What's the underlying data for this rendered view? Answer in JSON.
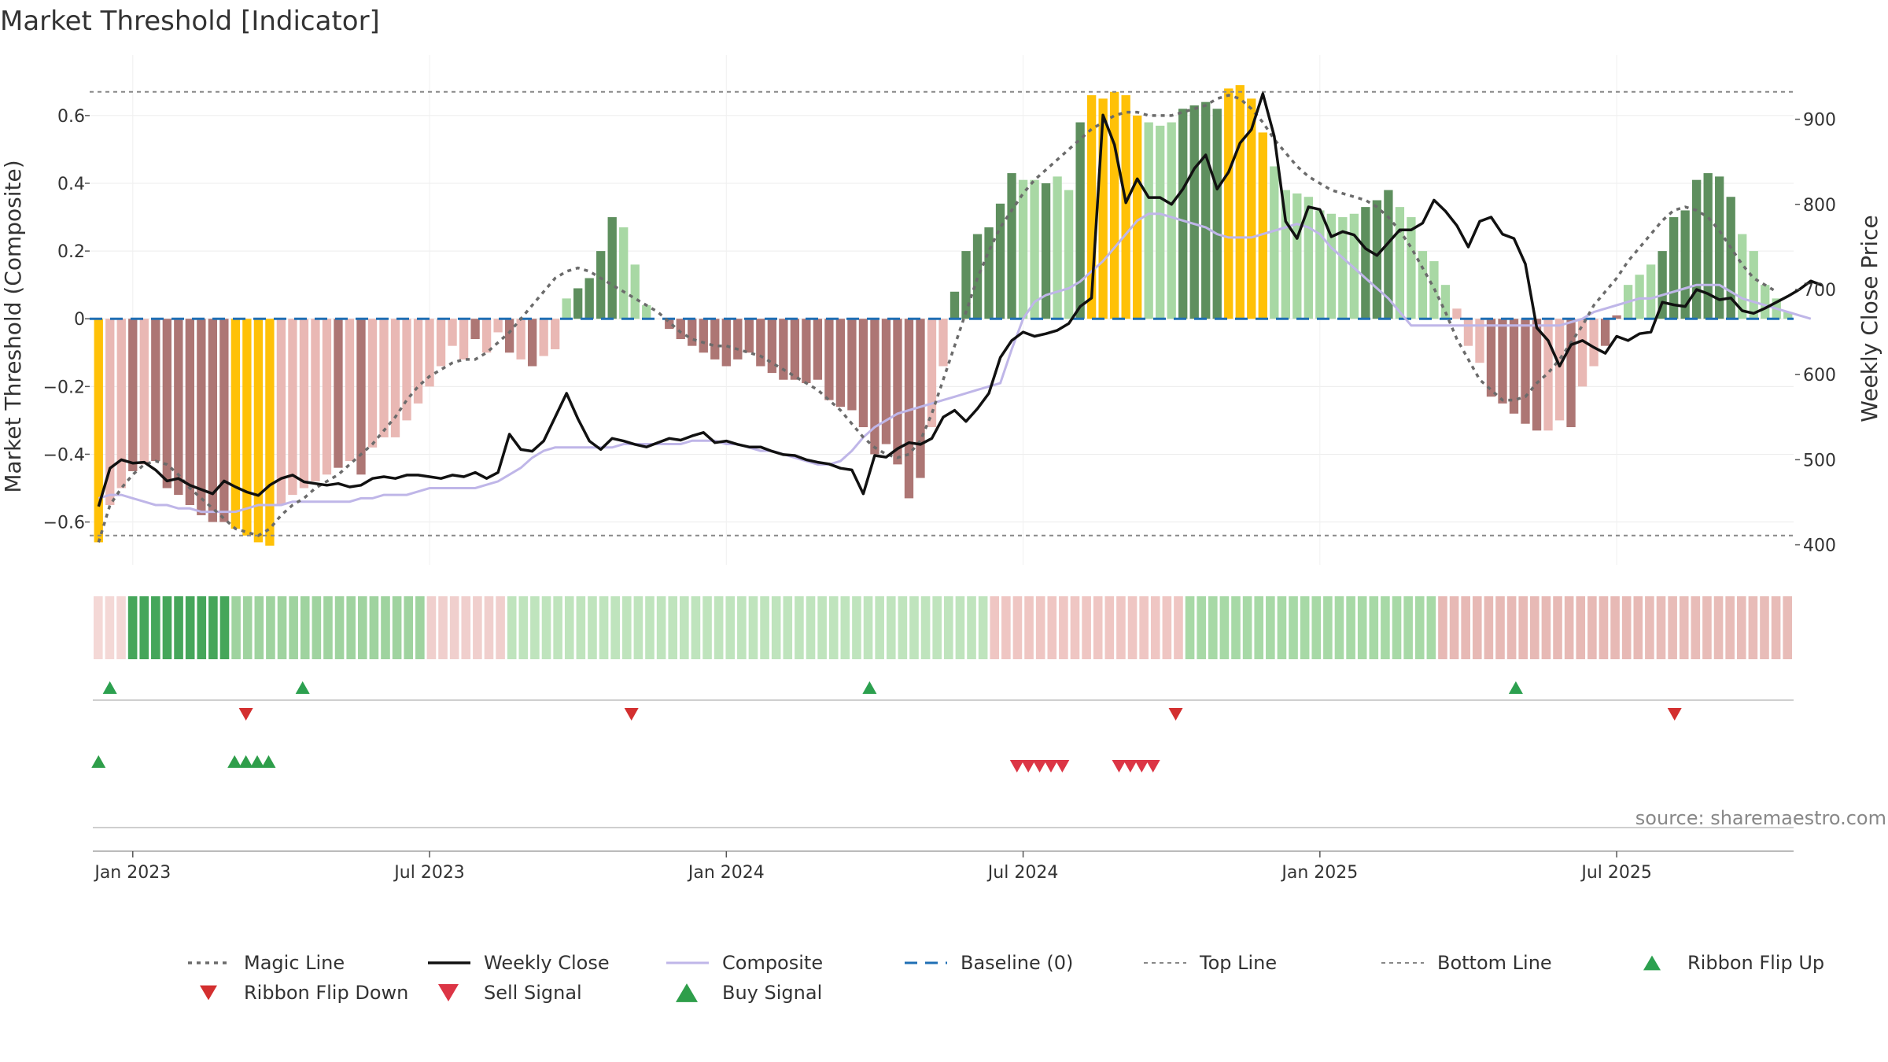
{
  "colors": {
    "gold": "#ffc107",
    "green_dark": "#5e8f5e",
    "green_light": "#a8d8a4",
    "red_dark": "#ad7674",
    "red_light": "#e9b8b4",
    "close": "#111111",
    "composite": "#bfb6e8",
    "magic": "#6b6b6b",
    "baseline": "#1f6fb4",
    "guide": "#888888",
    "flip_up": "#2ca04f",
    "flip_down": "#d32f2f",
    "sell": "#dc3545",
    "buy": "#2e9e4a"
  },
  "chart_data": {
    "type": "bar",
    "title": "Market Threshold [Indicator]",
    "ylabel": "Market Threshold (Composite)",
    "y2label": "Weekly Close Price",
    "ylim": [
      -0.68,
      0.76
    ],
    "y2lim": [
      395,
      968
    ],
    "yticks": [
      {
        "v": 0.6,
        "label": "0.6"
      },
      {
        "v": 0.4,
        "label": "0.4"
      },
      {
        "v": 0.2,
        "label": "0.2"
      },
      {
        "v": 0,
        "label": "0"
      },
      {
        "v": -0.2,
        "label": "−0.2"
      },
      {
        "v": -0.4,
        "label": "−0.4"
      },
      {
        "v": -0.6,
        "label": "−0.6"
      }
    ],
    "y2ticks": [
      {
        "v": 900,
        "label": "900"
      },
      {
        "v": 800,
        "label": "800"
      },
      {
        "v": 700,
        "label": "700"
      },
      {
        "v": 600,
        "label": "600"
      },
      {
        "v": 500,
        "label": "500"
      },
      {
        "v": 400,
        "label": "400"
      }
    ],
    "xticks": [
      {
        "week": 3,
        "label": "Jan 2023"
      },
      {
        "week": 29,
        "label": "Jul 2023"
      },
      {
        "week": 55,
        "label": "Jan 2024"
      },
      {
        "week": 81,
        "label": "Jul 2024"
      },
      {
        "week": 107,
        "label": "Jan 2025"
      },
      {
        "week": 133,
        "label": "Jul 2025"
      }
    ],
    "top_line": 0.67,
    "bottom_line": -0.64,
    "baseline": 0,
    "composite": [
      -0.66,
      -0.55,
      -0.5,
      -0.45,
      -0.43,
      -0.42,
      -0.5,
      -0.52,
      -0.55,
      -0.58,
      -0.6,
      -0.6,
      -0.62,
      -0.64,
      -0.66,
      -0.67,
      -0.55,
      -0.52,
      -0.5,
      -0.48,
      -0.46,
      -0.44,
      -0.42,
      -0.46,
      -0.38,
      -0.35,
      -0.35,
      -0.3,
      -0.25,
      -0.2,
      -0.14,
      -0.08,
      -0.12,
      -0.06,
      -0.1,
      -0.04,
      -0.1,
      -0.12,
      -0.14,
      -0.11,
      -0.09,
      0.06,
      0.09,
      0.12,
      0.2,
      0.3,
      0.27,
      0.16,
      0.04,
      0,
      -0.03,
      -0.06,
      -0.08,
      -0.1,
      -0.12,
      -0.14,
      -0.12,
      -0.1,
      -0.14,
      -0.16,
      -0.18,
      -0.18,
      -0.19,
      -0.18,
      -0.24,
      -0.26,
      -0.27,
      -0.32,
      -0.4,
      -0.37,
      -0.43,
      -0.53,
      -0.47,
      -0.32,
      -0.14,
      0.08,
      0.2,
      0.25,
      0.27,
      0.34,
      0.43,
      0.41,
      0.41,
      0.4,
      0.42,
      0.38,
      0.58,
      0.66,
      0.65,
      0.67,
      0.66,
      0.6,
      0.58,
      0.57,
      0.58,
      0.62,
      0.63,
      0.64,
      0.62,
      0.68,
      0.69,
      0.65,
      0.55,
      0.45,
      0.38,
      0.37,
      0.36,
      0.32,
      0.31,
      0.3,
      0.31,
      0.33,
      0.35,
      0.38,
      0.33,
      0.3,
      0.2,
      0.17,
      0.1,
      0.03,
      -0.08,
      -0.13,
      -0.23,
      -0.25,
      -0.28,
      -0.31,
      -0.33,
      -0.33,
      -0.3,
      -0.32,
      -0.2,
      -0.14,
      -0.08,
      0.01,
      0.1,
      0.13,
      0.16,
      0.2,
      0.3,
      0.32,
      0.41,
      0.43,
      0.42,
      0.36,
      0.25,
      0.2,
      0.1,
      0.06,
      0.02
    ],
    "bar_tones": [
      4,
      0,
      0,
      1,
      0,
      1,
      1,
      1,
      1,
      1,
      1,
      1,
      4,
      4,
      4,
      4,
      0,
      0,
      0,
      0,
      0,
      1,
      0,
      1,
      0,
      0,
      0,
      0,
      0,
      0,
      0,
      0,
      0,
      1,
      0,
      0,
      1,
      0,
      1,
      0,
      0,
      2,
      3,
      3,
      3,
      3,
      2,
      2,
      2,
      0,
      1,
      1,
      1,
      1,
      1,
      1,
      1,
      1,
      1,
      1,
      1,
      1,
      1,
      1,
      1,
      1,
      1,
      1,
      1,
      1,
      1,
      1,
      1,
      0,
      0,
      3,
      3,
      3,
      3,
      3,
      3,
      2,
      2,
      3,
      2,
      2,
      3,
      4,
      4,
      4,
      4,
      4,
      2,
      2,
      2,
      3,
      3,
      3,
      3,
      4,
      4,
      4,
      4,
      2,
      2,
      2,
      2,
      2,
      2,
      2,
      2,
      3,
      3,
      3,
      2,
      2,
      2,
      2,
      2,
      0,
      0,
      0,
      1,
      1,
      1,
      1,
      1,
      0,
      0,
      1,
      0,
      0,
      1,
      1,
      2,
      2,
      2,
      3,
      3,
      3,
      3,
      3,
      3,
      3,
      2,
      2,
      2,
      2,
      2,
      2
    ],
    "magic_line": [
      -0.66,
      -0.55,
      -0.5,
      -0.46,
      -0.43,
      -0.42,
      -0.43,
      -0.46,
      -0.5,
      -0.53,
      -0.56,
      -0.59,
      -0.62,
      -0.63,
      -0.64,
      -0.62,
      -0.58,
      -0.55,
      -0.53,
      -0.5,
      -0.48,
      -0.46,
      -0.43,
      -0.4,
      -0.37,
      -0.33,
      -0.29,
      -0.24,
      -0.2,
      -0.17,
      -0.15,
      -0.13,
      -0.12,
      -0.12,
      -0.1,
      -0.07,
      -0.04,
      0,
      0.04,
      0.08,
      0.12,
      0.14,
      0.15,
      0.14,
      0.12,
      0.1,
      0.08,
      0.06,
      0.04,
      0.02,
      -0.01,
      -0.04,
      -0.06,
      -0.07,
      -0.08,
      -0.08,
      -0.09,
      -0.1,
      -0.11,
      -0.13,
      -0.15,
      -0.17,
      -0.19,
      -0.21,
      -0.24,
      -0.27,
      -0.31,
      -0.35,
      -0.38,
      -0.4,
      -0.41,
      -0.4,
      -0.36,
      -0.28,
      -0.18,
      -0.08,
      0.02,
      0.12,
      0.2,
      0.27,
      0.32,
      0.37,
      0.41,
      0.44,
      0.47,
      0.5,
      0.53,
      0.56,
      0.58,
      0.6,
      0.61,
      0.61,
      0.6,
      0.6,
      0.6,
      0.61,
      0.62,
      0.63,
      0.65,
      0.66,
      0.65,
      0.62,
      0.58,
      0.53,
      0.49,
      0.45,
      0.42,
      0.4,
      0.38,
      0.37,
      0.36,
      0.35,
      0.33,
      0.3,
      0.26,
      0.21,
      0.15,
      0.09,
      0.02,
      -0.06,
      -0.12,
      -0.18,
      -0.21,
      -0.24,
      -0.24,
      -0.23,
      -0.19,
      -0.16,
      -0.12,
      -0.07,
      -0.02,
      0.04,
      0.08,
      0.12,
      0.17,
      0.21,
      0.25,
      0.29,
      0.32,
      0.33,
      0.32,
      0.3,
      0.26,
      0.21,
      0.16,
      0.12,
      0.1,
      0.08
    ],
    "composite_line": [
      -0.53,
      -0.52,
      -0.52,
      -0.53,
      -0.54,
      -0.55,
      -0.55,
      -0.56,
      -0.56,
      -0.57,
      -0.57,
      -0.57,
      -0.57,
      -0.56,
      -0.55,
      -0.55,
      -0.55,
      -0.54,
      -0.54,
      -0.54,
      -0.54,
      -0.54,
      -0.54,
      -0.53,
      -0.53,
      -0.52,
      -0.52,
      -0.52,
      -0.51,
      -0.5,
      -0.5,
      -0.5,
      -0.5,
      -0.5,
      -0.49,
      -0.48,
      -0.46,
      -0.44,
      -0.41,
      -0.39,
      -0.38,
      -0.38,
      -0.38,
      -0.38,
      -0.38,
      -0.38,
      -0.37,
      -0.37,
      -0.37,
      -0.37,
      -0.37,
      -0.37,
      -0.36,
      -0.36,
      -0.36,
      -0.37,
      -0.37,
      -0.38,
      -0.39,
      -0.39,
      -0.4,
      -0.41,
      -0.42,
      -0.43,
      -0.43,
      -0.42,
      -0.39,
      -0.35,
      -0.32,
      -0.3,
      -0.28,
      -0.27,
      -0.26,
      -0.25,
      -0.24,
      -0.23,
      -0.22,
      -0.21,
      -0.2,
      -0.19,
      -0.09,
      0,
      0.05,
      0.07,
      0.08,
      0.09,
      0.11,
      0.14,
      0.17,
      0.21,
      0.25,
      0.29,
      0.31,
      0.31,
      0.3,
      0.29,
      0.28,
      0.27,
      0.25,
      0.24,
      0.24,
      0.24,
      0.25,
      0.26,
      0.27,
      0.28,
      0.27,
      0.25,
      0.21,
      0.18,
      0.15,
      0.12,
      0.09,
      0.06,
      0.02,
      -0.02,
      -0.02,
      -0.02,
      -0.02,
      -0.02,
      -0.02,
      -0.02,
      -0.02,
      -0.02,
      -0.02,
      -0.02,
      -0.02,
      -0.02,
      -0.02,
      -0.01,
      0,
      0.02,
      0.03,
      0.04,
      0.05,
      0.06,
      0.06,
      0.07,
      0.08,
      0.09,
      0.1,
      0.1,
      0.1,
      0.08,
      0.06,
      0.05,
      0.04,
      0.03,
      0.02,
      0.01,
      0
    ],
    "weekly_close": [
      445,
      490,
      500,
      496,
      497,
      488,
      475,
      478,
      470,
      465,
      460,
      475,
      468,
      462,
      458,
      470,
      478,
      482,
      474,
      472,
      470,
      472,
      468,
      470,
      478,
      480,
      478,
      482,
      482,
      480,
      478,
      482,
      480,
      485,
      478,
      485,
      530,
      512,
      510,
      522,
      550,
      578,
      548,
      522,
      512,
      525,
      522,
      518,
      515,
      520,
      525,
      523,
      528,
      532,
      520,
      522,
      518,
      515,
      515,
      510,
      506,
      505,
      500,
      497,
      495,
      490,
      488,
      460,
      505,
      503,
      513,
      520,
      518,
      525,
      550,
      558,
      545,
      560,
      578,
      620,
      640,
      650,
      645,
      648,
      652,
      660,
      680,
      690,
      905,
      870,
      802,
      830,
      808,
      808,
      800,
      818,
      842,
      858,
      818,
      838,
      872,
      888,
      930,
      880,
      780,
      760,
      797,
      794,
      762,
      768,
      764,
      748,
      740,
      755,
      770,
      770,
      778,
      805,
      792,
      775,
      750,
      780,
      785,
      765,
      760,
      730,
      655,
      640,
      610,
      635,
      640,
      632,
      625,
      645,
      640,
      648,
      650,
      685,
      682,
      680,
      700,
      695,
      688,
      690,
      675,
      672,
      678,
      685,
      692,
      700,
      710,
      705
    ],
    "ribbon_tones": [
      1,
      3,
      3,
      3,
      3,
      3,
      3,
      3,
      3,
      3,
      3,
      2,
      2,
      2,
      2,
      2,
      2,
      2,
      2,
      2,
      2,
      2,
      2,
      2,
      2,
      2,
      2,
      2,
      2,
      2,
      2,
      2,
      2,
      2,
      2,
      2,
      2,
      2,
      2,
      2,
      2,
      2,
      2,
      2,
      2,
      2,
      2,
      2,
      2,
      2,
      2,
      2,
      2,
      2,
      2,
      2,
      2,
      2,
      2,
      2,
      2,
      2,
      2,
      2,
      2,
      2,
      2,
      2,
      2,
      2,
      2,
      2,
      2,
      2,
      2,
      2,
      2,
      2,
      2,
      2,
      2,
      2,
      2,
      2,
      2,
      2,
      2,
      2,
      2,
      2,
      2,
      2,
      2,
      2,
      2,
      2,
      2,
      2,
      2,
      2,
      2,
      2,
      2,
      2,
      2,
      2,
      2,
      2,
      2,
      2,
      2,
      2,
      2,
      2,
      2,
      2,
      2,
      2,
      2,
      2,
      2,
      2,
      2,
      2,
      2,
      2,
      2,
      2,
      2,
      2,
      2,
      2,
      2,
      2,
      2,
      2,
      2,
      2,
      2,
      2,
      2,
      2,
      2,
      2,
      2,
      2,
      2,
      2
    ],
    "ribbon_flip_up": [
      1,
      18,
      68,
      125
    ],
    "ribbon_flip_down": [
      13,
      47,
      95,
      139
    ],
    "buy_signals": [
      0,
      12,
      13,
      14,
      15
    ],
    "sell_signals": [
      81,
      82,
      83,
      84,
      85,
      90,
      91,
      92,
      93
    ],
    "source": "source: sharemaestro.com",
    "legend": [
      {
        "key": "magic",
        "label": "Magic Line"
      },
      {
        "key": "close",
        "label": "Weekly Close"
      },
      {
        "key": "composite",
        "label": "Composite"
      },
      {
        "key": "baseline",
        "label": "Baseline (0)"
      },
      {
        "key": "top",
        "label": "Top Line"
      },
      {
        "key": "bottom",
        "label": "Bottom Line"
      },
      {
        "key": "flip_up",
        "label": "Ribbon Flip Up"
      },
      {
        "key": "flip_down",
        "label": "Ribbon Flip Down"
      },
      {
        "key": "sell",
        "label": "Sell Signal"
      },
      {
        "key": "buy",
        "label": "Buy Signal"
      }
    ]
  }
}
